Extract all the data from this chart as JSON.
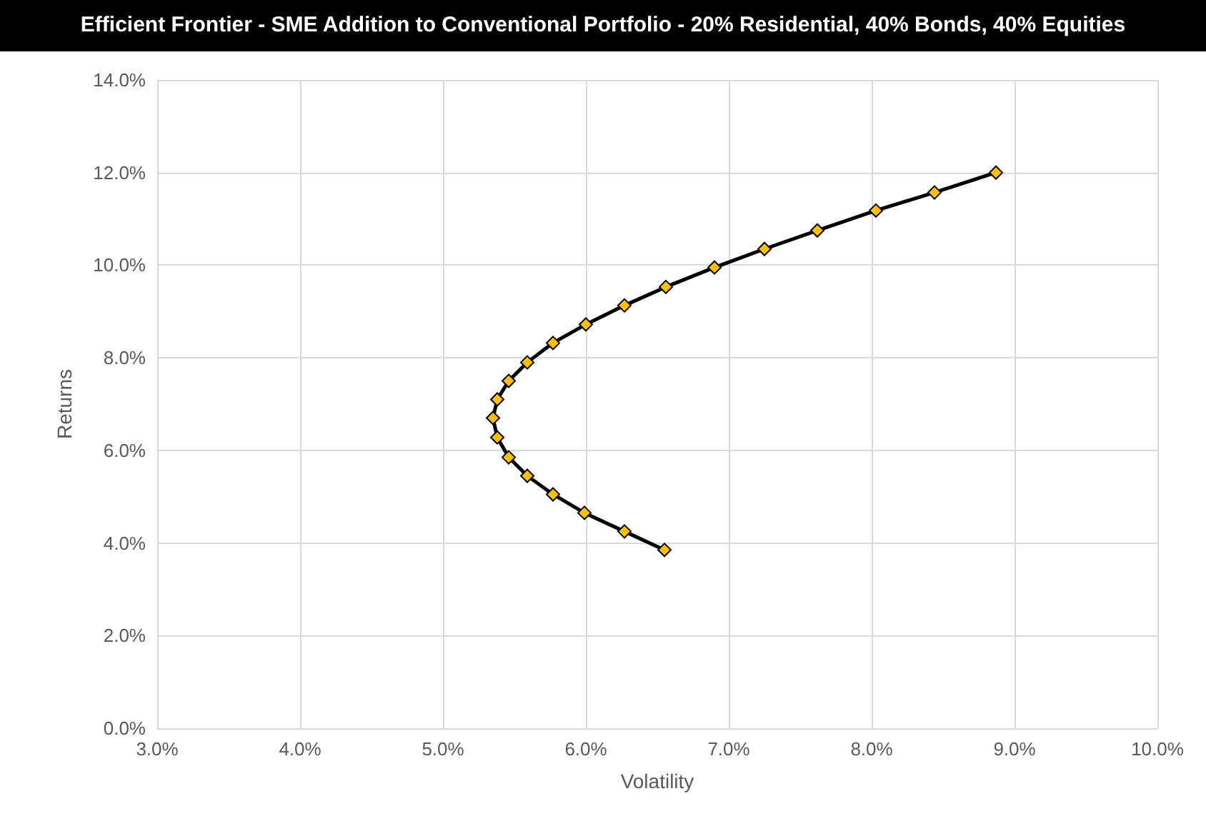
{
  "chart_data": {
    "type": "line",
    "title": "Efficient Frontier - SME Addition to Conventional Portfolio - 20% Residential, 40% Bonds, 40% Equities",
    "xlabel": "Volatility",
    "ylabel": "Returns",
    "x": [
      6.55,
      6.27,
      5.99,
      5.77,
      5.59,
      5.46,
      5.38,
      5.35,
      5.38,
      5.46,
      5.59,
      5.77,
      6.0,
      6.27,
      6.56,
      6.9,
      7.25,
      7.62,
      8.03,
      8.44,
      8.87
    ],
    "series": [
      {
        "color": "#ffc000",
        "values": [
          3.85,
          4.25,
          4.65,
          5.05,
          5.45,
          5.85,
          6.28,
          6.7,
          7.1,
          7.5,
          7.9,
          8.32,
          8.72,
          9.13,
          9.53,
          9.95,
          10.35,
          10.75,
          11.18,
          11.57,
          12.0
        ]
      }
    ],
    "xlim": [
      3,
      10
    ],
    "xticks": [
      {
        "value": 3,
        "label": "3.0%"
      },
      {
        "value": 4,
        "label": "4.0%"
      },
      {
        "value": 5,
        "label": "5.0%"
      },
      {
        "value": 6,
        "label": "6.0%"
      },
      {
        "value": 7,
        "label": "7.0%"
      },
      {
        "value": 8,
        "label": "8.0%"
      },
      {
        "value": 9,
        "label": "9.0%"
      },
      {
        "value": 10,
        "label": "10.0%"
      }
    ],
    "ylim": [
      0,
      14
    ],
    "yticks": [
      {
        "value": 0,
        "label": "0.0%"
      },
      {
        "value": 2,
        "label": "2.0%"
      },
      {
        "value": 4,
        "label": "4.0%"
      },
      {
        "value": 6,
        "label": "6.0%"
      },
      {
        "value": 8,
        "label": "8.0%"
      },
      {
        "value": 10,
        "label": "10.0%"
      },
      {
        "value": 12,
        "label": "12.0%"
      },
      {
        "value": 14,
        "label": "14.0%"
      }
    ],
    "grid": true,
    "marker": "diamond",
    "line_style": "solid"
  }
}
